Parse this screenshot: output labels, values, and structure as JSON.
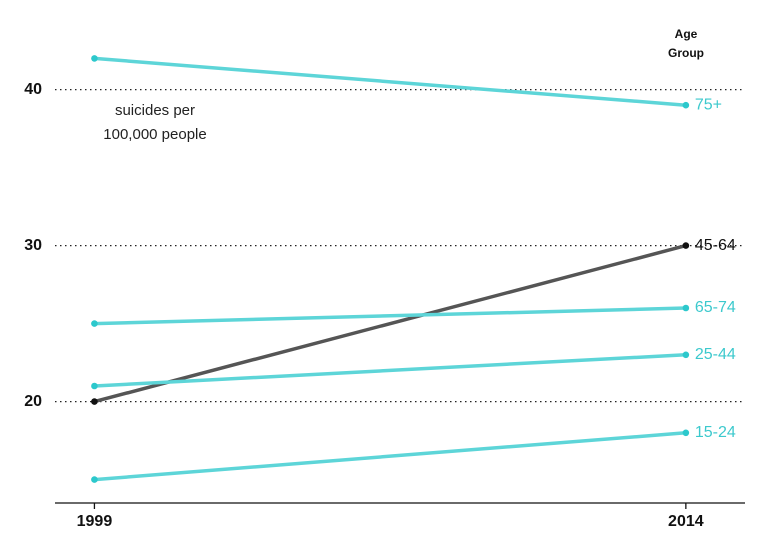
{
  "chart_data": {
    "type": "slope",
    "annotation": [
      "suicides per",
      "100,000 people"
    ],
    "legend_title": [
      "Age",
      "Group"
    ],
    "x": [
      1999,
      2014
    ],
    "xlim": [
      1998,
      2015.5
    ],
    "xticks": [
      1999,
      2014
    ],
    "ylim": [
      13.5,
      45
    ],
    "yticks": [
      20,
      30,
      40
    ],
    "grid": true,
    "series": [
      {
        "name": "75+",
        "color": "#5dd5d8",
        "label_color": "#3cc9cd",
        "values": [
          42,
          39
        ]
      },
      {
        "name": "45-64",
        "color": "#555555",
        "label_color": "#111111",
        "values": [
          20,
          30
        ]
      },
      {
        "name": "65-74",
        "color": "#5dd5d8",
        "label_color": "#3cc9cd",
        "values": [
          25,
          26
        ]
      },
      {
        "name": "25-44",
        "color": "#5dd5d8",
        "label_color": "#3cc9cd",
        "values": [
          21,
          23
        ]
      },
      {
        "name": "15-24",
        "color": "#5dd5d8",
        "label_color": "#3cc9cd",
        "values": [
          15,
          18
        ]
      }
    ]
  }
}
